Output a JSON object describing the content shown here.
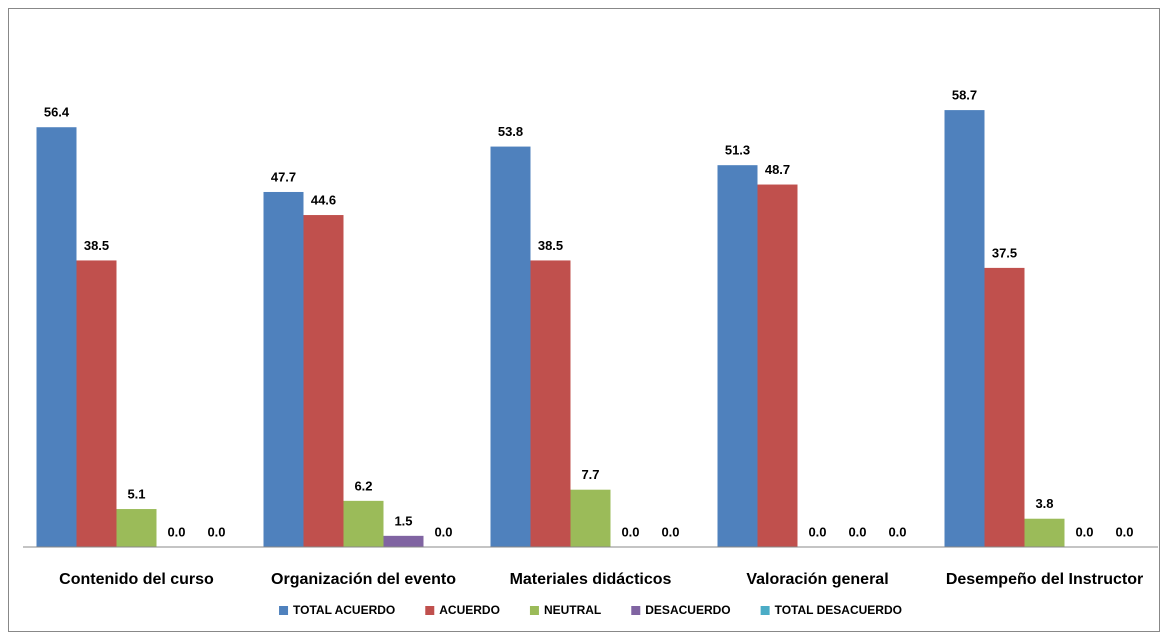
{
  "chart_data": {
    "type": "bar",
    "categories": [
      "Contenido del curso",
      "Organización del evento",
      "Materiales didácticos",
      "Valoración general",
      "Desempeño del Instructor"
    ],
    "series": [
      {
        "name": "TOTAL ACUERDO",
        "color": "#4f81bd",
        "values": [
          56.4,
          47.7,
          53.8,
          51.3,
          58.7
        ],
        "value_labels": [
          "56.4",
          "47.7",
          "53.8",
          "51.3",
          "58.7"
        ]
      },
      {
        "name": "ACUERDO",
        "color": "#c0504d",
        "values": [
          38.5,
          44.6,
          38.5,
          48.7,
          37.5
        ],
        "value_labels": [
          "38.5",
          "44.6",
          "38.5",
          "48.7",
          "37.5"
        ]
      },
      {
        "name": "NEUTRAL",
        "color": "#9bbb59",
        "values": [
          5.1,
          6.2,
          7.7,
          0,
          3.8
        ],
        "value_labels": [
          "5.1",
          "6.2",
          "7.7",
          "0.0",
          "3.8"
        ]
      },
      {
        "name": "DESACUERDO",
        "color": "#8064a2",
        "values": [
          0,
          1.5,
          0,
          0,
          0
        ],
        "value_labels": [
          "0.0",
          "1.5",
          "0.0",
          "0.0",
          "0.0"
        ]
      },
      {
        "name": "TOTAL DESACUERDO",
        "color": "#4bacc6",
        "values": [
          0,
          0,
          0,
          0,
          0
        ],
        "value_labels": [
          "0.0",
          "0.0",
          "0.0",
          "0.0",
          "0.0"
        ]
      }
    ],
    "ylim": [
      0,
      70
    ],
    "legend": "bottom"
  }
}
